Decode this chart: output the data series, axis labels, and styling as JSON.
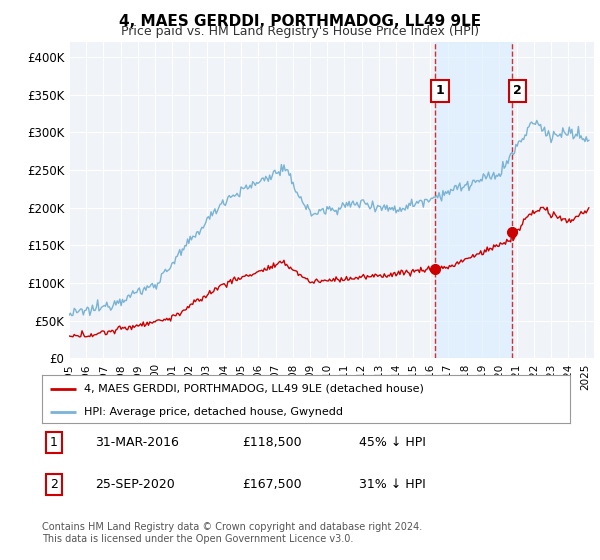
{
  "title": "4, MAES GERDDI, PORTHMADOG, LL49 9LE",
  "subtitle": "Price paid vs. HM Land Registry's House Price Index (HPI)",
  "title_fontsize": 11,
  "subtitle_fontsize": 9,
  "ylim": [
    0,
    420000
  ],
  "yticks": [
    0,
    50000,
    100000,
    150000,
    200000,
    250000,
    300000,
    350000,
    400000
  ],
  "ytick_labels": [
    "£0",
    "£50K",
    "£100K",
    "£150K",
    "£200K",
    "£250K",
    "£300K",
    "£350K",
    "£400K"
  ],
  "background_color": "#ffffff",
  "plot_bg_color": "#f0f4f8",
  "grid_color": "#ffffff",
  "hpi_color": "#7ab3d4",
  "property_color": "#cc0000",
  "shade_color": "#ddeeff",
  "marker1_date_x": 2016.25,
  "marker1_price": 118500,
  "marker2_date_x": 2020.75,
  "marker2_price": 167500,
  "vline1_x": 2016.25,
  "vline2_x": 2020.75,
  "legend_property": "4, MAES GERDDI, PORTHMADOG, LL49 9LE (detached house)",
  "legend_hpi": "HPI: Average price, detached house, Gwynedd",
  "table_row1": [
    "1",
    "31-MAR-2016",
    "£118,500",
    "45% ↓ HPI"
  ],
  "table_row2": [
    "2",
    "25-SEP-2020",
    "£167,500",
    "31% ↓ HPI"
  ],
  "footnote": "Contains HM Land Registry data © Crown copyright and database right 2024.\nThis data is licensed under the Open Government Licence v3.0.",
  "xmin": 1995,
  "xmax": 2025.5
}
